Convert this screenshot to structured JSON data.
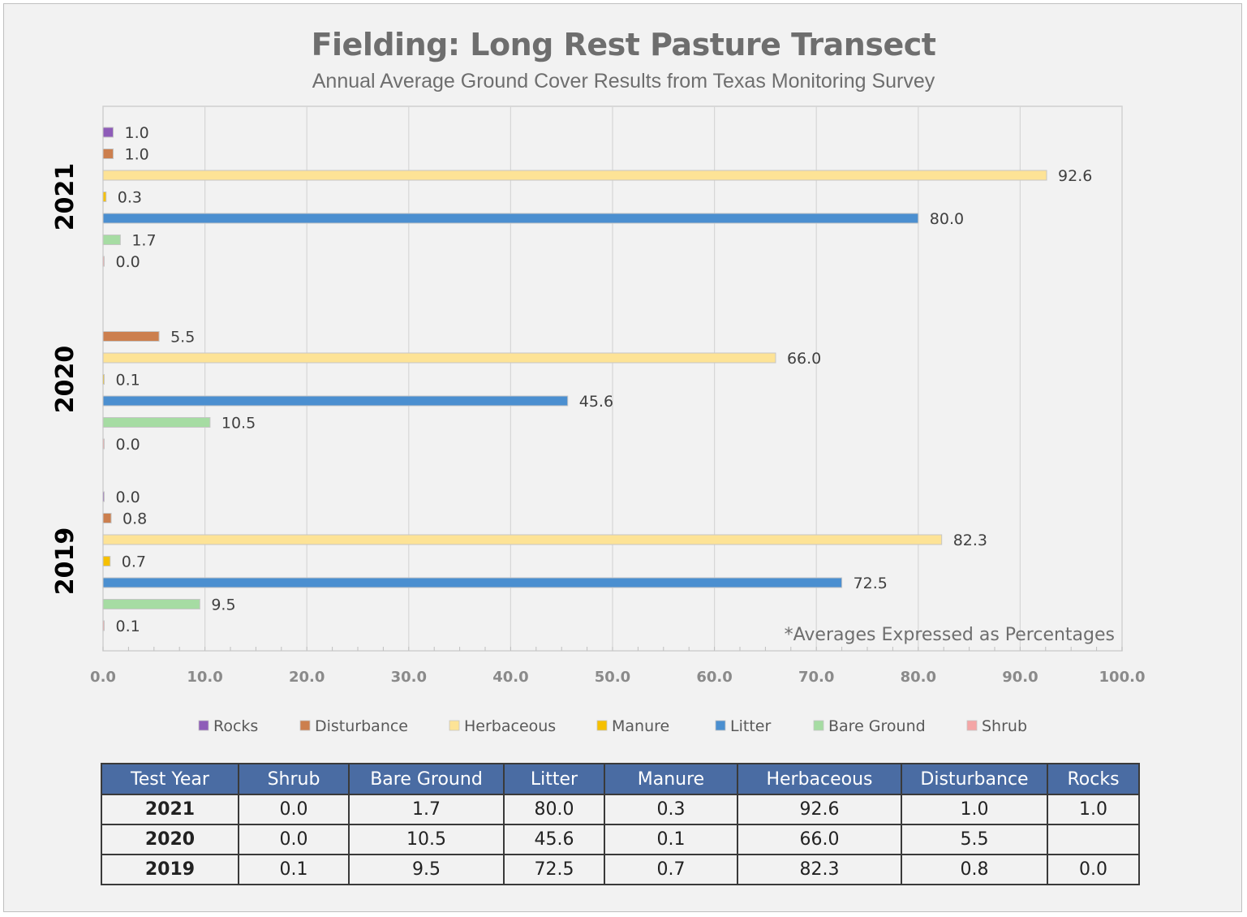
{
  "title": "Fielding: Long Rest Pasture Transect",
  "subtitle": "Annual Average Ground Cover Results from Texas Monitoring Survey",
  "chart_data": {
    "type": "bar",
    "orientation": "horizontal",
    "categories": [
      "2021",
      "2020",
      "2019"
    ],
    "series": [
      {
        "name": "Rocks",
        "color": "#8e5cb8",
        "values": [
          1.0,
          null,
          0.0
        ],
        "labels": [
          "1.0",
          null,
          "0.0"
        ]
      },
      {
        "name": "Disturbance",
        "color": "#cc7f4e",
        "values": [
          1.0,
          5.5,
          0.8
        ],
        "labels": [
          "1.0",
          "5.5",
          "0.8"
        ]
      },
      {
        "name": "Herbaceous",
        "color": "#fde396",
        "values": [
          92.6,
          66.0,
          82.3
        ],
        "labels": [
          "92.6",
          "66.0",
          "82.3"
        ]
      },
      {
        "name": "Manure",
        "color": "#f6c000",
        "values": [
          0.3,
          0.1,
          0.7
        ],
        "labels": [
          "0.3",
          "0.1",
          "0.7"
        ]
      },
      {
        "name": "Litter",
        "color": "#4b8fd0",
        "values": [
          80.0,
          45.6,
          72.5
        ],
        "labels": [
          "80.0",
          "45.6",
          "72.5"
        ]
      },
      {
        "name": "Bare Ground",
        "color": "#a6dca3",
        "values": [
          1.7,
          10.5,
          9.5
        ],
        "labels": [
          "1.7",
          "10.5",
          "9.5"
        ]
      },
      {
        "name": "Shrub",
        "color": "#f4a6a6",
        "values": [
          0.0,
          0.0,
          0.1
        ],
        "labels": [
          "0.0",
          "0.0",
          "0.1"
        ]
      }
    ],
    "xlim": [
      0,
      100
    ],
    "xticks": [
      "0.0",
      "10.0",
      "20.0",
      "30.0",
      "40.0",
      "50.0",
      "60.0",
      "70.0",
      "80.0",
      "90.0",
      "100.0"
    ],
    "grid": true,
    "legend": "bottom",
    "annotation": "*Averages Expressed as Percentages"
  },
  "table": {
    "headers": [
      "Test Year",
      "Shrub",
      "Bare Ground",
      "Litter",
      "Manure",
      "Herbaceous",
      "Disturbance",
      "Rocks"
    ],
    "rows": [
      [
        "2021",
        "0.0",
        "1.7",
        "80.0",
        "0.3",
        "92.6",
        "1.0",
        "1.0"
      ],
      [
        "2020",
        "0.0",
        "10.5",
        "45.6",
        "0.1",
        "66.0",
        "5.5",
        ""
      ],
      [
        "2019",
        "0.1",
        "9.5",
        "72.5",
        "0.7",
        "82.3",
        "0.8",
        "0.0"
      ]
    ]
  }
}
